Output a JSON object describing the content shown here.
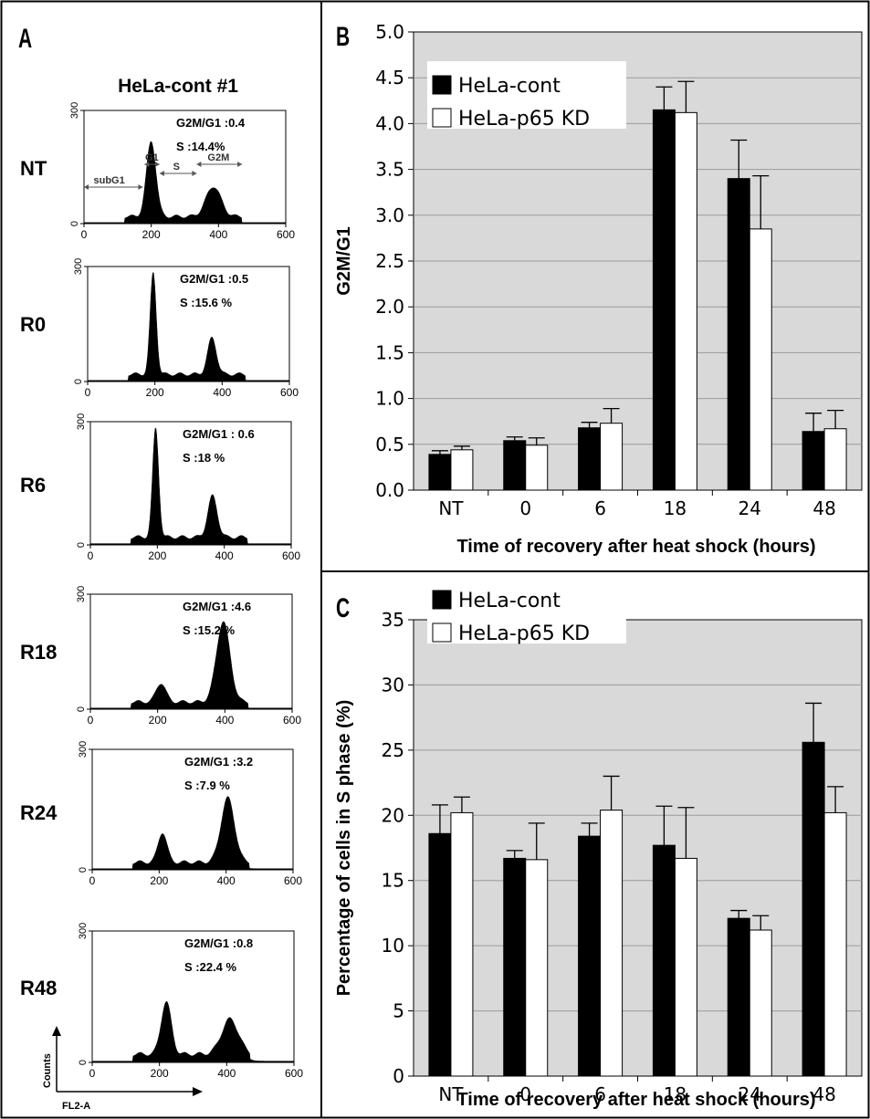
{
  "panels": {
    "a_label": "A",
    "b_label": "B",
    "c_label": "C"
  },
  "panel_a": {
    "title": "HeLa-cont #1",
    "gate_labels": [
      "subG1",
      "G1",
      "S",
      "G2M"
    ],
    "y_axis_label": "Counts",
    "x_axis_label": "FL2-A"
  },
  "chart_data": [
    {
      "type": "area",
      "panel": "A",
      "row": "NT",
      "annotation_g2m": "G2M/G1 :0.4",
      "annotation_s": "S :14.4%",
      "xlim": [
        0,
        600
      ],
      "ylim": [
        0,
        300
      ],
      "xticks": [
        "0",
        "200",
        "400",
        "600"
      ],
      "yticks": [
        "0",
        "300"
      ],
      "peaks": [
        {
          "x": 200,
          "height": 200,
          "width": 14
        },
        {
          "x": 385,
          "height": 80,
          "width": 22
        }
      ]
    },
    {
      "type": "area",
      "panel": "A",
      "row": "R0",
      "annotation_g2m": "G2M/G1 :0.5",
      "annotation_s": "S :15.6 %",
      "xlim": [
        0,
        600
      ],
      "ylim": [
        0,
        300
      ],
      "xticks": [
        "0",
        "200",
        "400",
        "600"
      ],
      "yticks": [
        "0",
        "300"
      ],
      "peaks": [
        {
          "x": 195,
          "height": 265,
          "width": 9
        },
        {
          "x": 370,
          "height": 95,
          "width": 13
        }
      ]
    },
    {
      "type": "area",
      "panel": "A",
      "row": "R6",
      "annotation_g2m": "G2M/G1 : 0.6",
      "annotation_s": "S :18 %",
      "xlim": [
        0,
        600
      ],
      "ylim": [
        0,
        300
      ],
      "xticks": [
        "0",
        "200",
        "400",
        "600"
      ],
      "yticks": [
        "0",
        "300"
      ],
      "peaks": [
        {
          "x": 195,
          "height": 265,
          "width": 9
        },
        {
          "x": 365,
          "height": 100,
          "width": 14
        }
      ]
    },
    {
      "type": "area",
      "panel": "A",
      "row": "R18",
      "annotation_g2m": "G2M/G1 :4.6",
      "annotation_s": "S :15.2 %",
      "xlim": [
        0,
        600
      ],
      "ylim": [
        0,
        300
      ],
      "xticks": [
        "0",
        "200",
        "400",
        "600"
      ],
      "yticks": [
        "0",
        "300"
      ],
      "peaks": [
        {
          "x": 210,
          "height": 50,
          "width": 14
        },
        {
          "x": 395,
          "height": 210,
          "width": 20
        }
      ]
    },
    {
      "type": "area",
      "panel": "A",
      "row": "R24",
      "annotation_g2m": "G2M/G1 :3.2",
      "annotation_s": "S :7.9 %",
      "xlim": [
        0,
        600
      ],
      "ylim": [
        0,
        300
      ],
      "xticks": [
        "0",
        "200",
        "400",
        "600"
      ],
      "yticks": [
        "0",
        "300"
      ],
      "peaks": [
        {
          "x": 210,
          "height": 75,
          "width": 13
        },
        {
          "x": 405,
          "height": 160,
          "width": 20
        }
      ]
    },
    {
      "type": "area",
      "panel": "A",
      "row": "R48",
      "annotation_g2m": "G2M/G1 :0.8",
      "annotation_s": "S :22.4 %",
      "xlim": [
        0,
        600
      ],
      "ylim": [
        0,
        300
      ],
      "xticks": [
        "0",
        "200",
        "400",
        "600"
      ],
      "yticks": [
        "0",
        "300"
      ],
      "peaks": [
        {
          "x": 220,
          "height": 120,
          "width": 15
        },
        {
          "x": 410,
          "height": 80,
          "width": 25
        }
      ]
    },
    {
      "type": "bar",
      "panel": "B",
      "categories": [
        "NT",
        "0",
        "6",
        "18",
        "24",
        "48"
      ],
      "series": [
        {
          "name": "HeLa-cont",
          "values": [
            0.39,
            0.54,
            0.68,
            4.15,
            3.4,
            0.64
          ],
          "errors": [
            0.04,
            0.04,
            0.06,
            0.25,
            0.42,
            0.2
          ]
        },
        {
          "name": "HeLa-p65 KD",
          "values": [
            0.44,
            0.49,
            0.73,
            4.12,
            2.85,
            0.67
          ],
          "errors": [
            0.04,
            0.08,
            0.16,
            0.34,
            0.58,
            0.2
          ]
        }
      ],
      "ylabel": "G2M/G1",
      "xlabel": "Time of recovery after heat shock (hours)",
      "ylim": [
        0,
        5
      ],
      "yticks": [
        "0.0",
        "0.5",
        "1.0",
        "1.5",
        "2.0",
        "2.5",
        "3.0",
        "3.5",
        "4.0",
        "4.5",
        "5.0"
      ],
      "legend": "top-left",
      "grid": true,
      "colors": {
        "plot_bg": "#d9d9d9",
        "series1": "#000000",
        "series2": "#ffffff",
        "grid": "#9a9a9a"
      }
    },
    {
      "type": "bar",
      "panel": "C",
      "categories": [
        "NT",
        "0",
        "6",
        "18",
        "24",
        "48"
      ],
      "series": [
        {
          "name": "HeLa-cont",
          "values": [
            18.6,
            16.7,
            18.4,
            17.7,
            12.1,
            25.6
          ],
          "errors": [
            2.2,
            0.6,
            1.0,
            3.0,
            0.6,
            3.0
          ]
        },
        {
          "name": "HeLa-p65 KD",
          "values": [
            20.2,
            16.6,
            20.4,
            16.7,
            11.2,
            20.2
          ],
          "errors": [
            1.2,
            2.8,
            2.6,
            3.9,
            1.1,
            2.0
          ]
        }
      ],
      "ylabel": "Percentage of cells in S phase (%)",
      "xlabel": "Time of recovery after heat shock (hours)",
      "ylim": [
        0,
        35
      ],
      "yticks": [
        "0",
        "5",
        "10",
        "15",
        "20",
        "25",
        "30",
        "35"
      ],
      "legend": "top-left",
      "grid": true,
      "colors": {
        "plot_bg": "#d9d9d9",
        "series1": "#000000",
        "series2": "#ffffff",
        "grid": "#9a9a9a"
      }
    }
  ]
}
